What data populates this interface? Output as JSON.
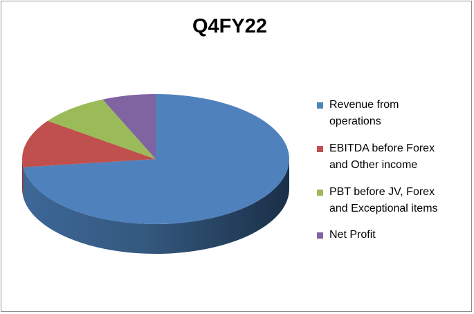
{
  "chart_data": {
    "type": "pie",
    "title": "Q4FY22",
    "legend_position": "right",
    "three_d": true,
    "slices": [
      {
        "label": "Revenue from operations",
        "value": 73,
        "color": "#4f81bd"
      },
      {
        "label": "EBITDA before Forex and Other income",
        "value": 12,
        "color": "#c0504d"
      },
      {
        "label": "PBT before JV, Forex and Exceptional items",
        "value": 8.5,
        "color": "#9bbb59"
      },
      {
        "label": "Net Profit",
        "value": 6.5,
        "color": "#8064a2"
      }
    ]
  },
  "legend": {
    "items": [
      {
        "line1": "Revenue from",
        "line2": "operations"
      },
      {
        "line1": "EBITDA before Forex",
        "line2": "and Other income"
      },
      {
        "line1": "PBT before JV, Forex",
        "line2": "and Exceptional items"
      },
      {
        "line1": "Net Profit",
        "line2": ""
      }
    ]
  }
}
